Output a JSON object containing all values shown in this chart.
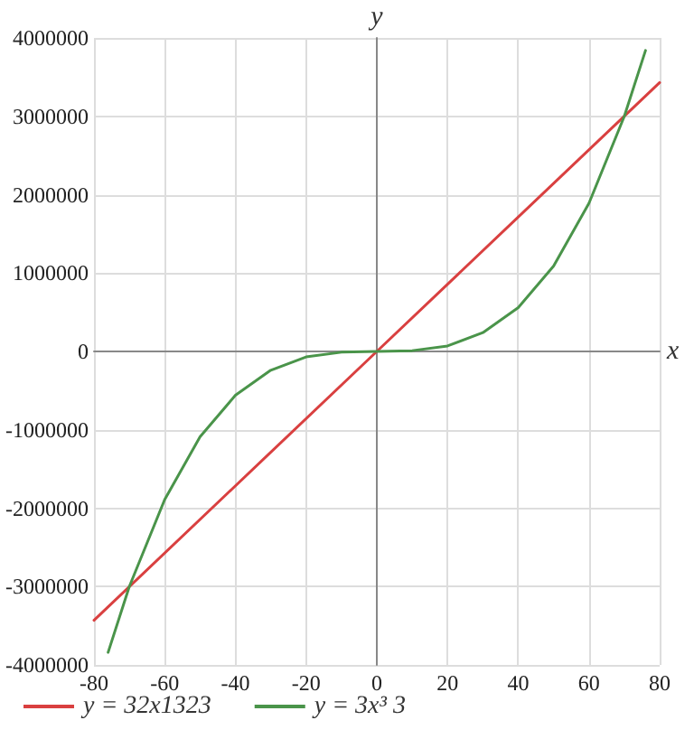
{
  "chart_data": {
    "type": "line",
    "xlabel": "x",
    "ylabel": "y",
    "xlim": [
      -80,
      80
    ],
    "xticks": [
      -80,
      -60,
      -40,
      -20,
      0,
      20,
      40,
      60,
      80
    ],
    "ylim": [
      -4000000,
      4000000
    ],
    "yticks": [
      -4000000,
      -3000000,
      -2000000,
      -1000000,
      0,
      1000000,
      2000000,
      3000000,
      4000000
    ],
    "grid": true,
    "legend": "bottom left",
    "marker": "none",
    "line_style": "solid",
    "series": [
      {
        "name": "y = 32x1323",
        "color": "#d94040",
        "x": [
          -80,
          0,
          80
        ],
        "values": [
          -3430000,
          0,
          3430000
        ]
      },
      {
        "name": "y = 3x³ 3",
        "color": "#4a944a",
        "x": [
          -76,
          -70,
          -60,
          -50,
          -40,
          -30,
          -20,
          -10,
          0,
          10,
          20,
          30,
          40,
          50,
          60,
          70,
          76
        ],
        "values": [
          -3840000,
          -3000000,
          -1890000,
          -1090000,
          -560000,
          -240000,
          -70000,
          -10000,
          0,
          10000,
          70000,
          240000,
          560000,
          1090000,
          1890000,
          3000000,
          3840000
        ]
      }
    ]
  }
}
